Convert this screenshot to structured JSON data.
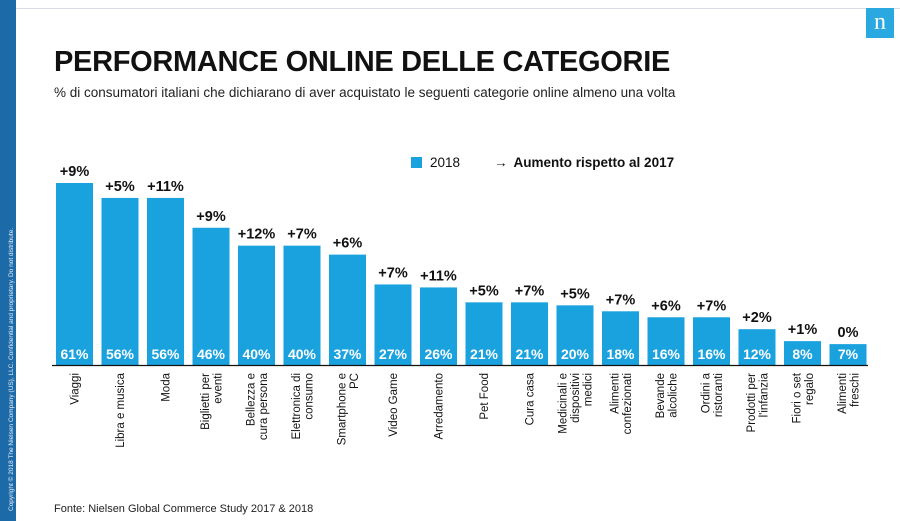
{
  "header": {
    "title": "PERFORMANCE ONLINE DELLE CATEGORIE",
    "subtitle": "% di consumatori italiani che dichiarano di aver acquistato le seguenti categorie online almeno una volta",
    "logo_letter": "n"
  },
  "legend": {
    "series_label": "2018",
    "arrow": "→",
    "note": "Aumento rispetto al 2017"
  },
  "footer": {
    "source": "Fonte: Nielsen Global Commerce Study 2017 & 2018",
    "copyright": "Copyright © 2018 The Nielsen Company (US), LLC. Confidential and proprietary. Do not distribute."
  },
  "colors": {
    "bar": "#1aa2df",
    "side_strip": "#1d6aa8",
    "logo": "#2aa8e0"
  },
  "chart_data": {
    "type": "bar",
    "title": "PERFORMANCE ONLINE DELLE CATEGORIE",
    "ylim": [
      0,
      61
    ],
    "grid": false,
    "legend_position": "top-right",
    "categories": [
      "Viaggi",
      "Libra e musica",
      "Moda",
      "Biglietti per eventi",
      "Bellezza e cura persona",
      "Elettronica di consumo",
      "Smartphone e PC",
      "Video Game",
      "Arredamento",
      "Pet Food",
      "Cura casa",
      "Medicinali e dispositivi medici",
      "Alimenti confezionati",
      "Bevande alcoliche",
      "Ordini a ristoranti",
      "Prodotti per l'infanzia",
      "Fiori o set regalo",
      "Alimenti freschi"
    ],
    "category_lines": [
      [
        "Viaggi"
      ],
      [
        "Libra e musica"
      ],
      [
        "Moda"
      ],
      [
        "Biglietti per",
        "eventi"
      ],
      [
        "Bellezza e",
        "cura persona"
      ],
      [
        "Elettronica di",
        "consumo"
      ],
      [
        "Smartphone e",
        "PC"
      ],
      [
        "Video Game"
      ],
      [
        "Arredamento"
      ],
      [
        "Pet Food"
      ],
      [
        "Cura casa"
      ],
      [
        "Medicinali e",
        "dispositivi",
        "medici"
      ],
      [
        "Alimenti",
        "confezionati"
      ],
      [
        "Bevande",
        "alcoliche"
      ],
      [
        "Ordini a",
        "ristoranti"
      ],
      [
        "Prodotti per",
        "l'infanzia"
      ],
      [
        "Fiori o set",
        "regalo"
      ],
      [
        "Alimenti",
        "freschi"
      ]
    ],
    "series": [
      {
        "name": "2018",
        "values": [
          61,
          56,
          56,
          46,
          40,
          40,
          37,
          27,
          26,
          21,
          21,
          20,
          18,
          16,
          16,
          12,
          8,
          7
        ],
        "value_labels": [
          "61%",
          "56%",
          "56%",
          "46%",
          "40%",
          "40%",
          "37%",
          "27%",
          "26%",
          "21%",
          "21%",
          "20%",
          "18%",
          "16%",
          "16%",
          "12%",
          "8%",
          "7%"
        ]
      }
    ],
    "increase_labels": [
      "+9%",
      "+5%",
      "+11%",
      "+9%",
      "+12%",
      "+7%",
      "+6%",
      "+7%",
      "+11%",
      "+5%",
      "+7%",
      "+5%",
      "+7%",
      "+6%",
      "+7%",
      "+2%",
      "+1%",
      "0%"
    ]
  }
}
